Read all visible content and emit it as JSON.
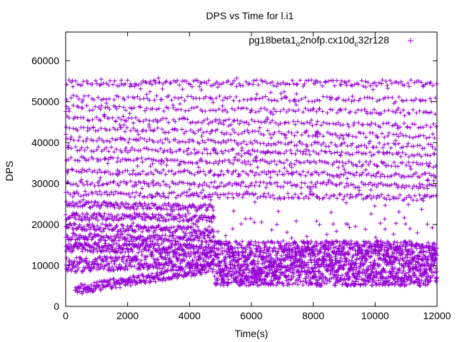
{
  "chart_data": {
    "type": "scatter",
    "title": "DPS vs Time for l.i1",
    "xlabel": "Time(s)",
    "ylabel": "DPS",
    "xlim": [
      0,
      12000
    ],
    "ylim": [
      0,
      67000
    ],
    "xticks": [
      0,
      2000,
      4000,
      6000,
      8000,
      10000,
      12000
    ],
    "yticks": [
      0,
      10000,
      20000,
      30000,
      40000,
      50000,
      60000
    ],
    "grid": false,
    "legend_position": "top-right",
    "marker": "+",
    "color": "#9400d3",
    "series": [
      {
        "name_parts": [
          "pg18beta1",
          "o",
          "2nofp.cx10d",
          "c",
          "32r128"
        ],
        "name": "pg18beta1_o2nofp.cx10d_c32r128",
        "bands": [
          {
            "x_range": [
              0,
              12000
            ],
            "y_center": 54500,
            "y_spread": 800,
            "count": 170
          },
          {
            "x_range": [
              0,
              12000
            ],
            "y_start": 51000,
            "y_end": 50500,
            "y_spread": 600,
            "count": 120
          },
          {
            "x_range": [
              0,
              12000
            ],
            "y_start": 48500,
            "y_end": 47500,
            "y_spread": 600,
            "count": 120
          },
          {
            "x_range": [
              0,
              12000
            ],
            "y_start": 46000,
            "y_end": 44000,
            "y_spread": 600,
            "count": 130
          },
          {
            "x_range": [
              0,
              12000
            ],
            "y_start": 43500,
            "y_end": 41500,
            "y_spread": 600,
            "count": 130
          },
          {
            "x_range": [
              0,
              12000
            ],
            "y_start": 41000,
            "y_end": 39000,
            "y_spread": 600,
            "count": 140
          },
          {
            "x_range": [
              0,
              12000
            ],
            "y_start": 38500,
            "y_end": 37000,
            "y_spread": 600,
            "count": 140
          },
          {
            "x_range": [
              0,
              12000
            ],
            "y_start": 36000,
            "y_end": 34500,
            "y_spread": 600,
            "count": 150
          },
          {
            "x_range": [
              0,
              12000
            ],
            "y_start": 33000,
            "y_end": 32000,
            "y_spread": 600,
            "count": 160
          },
          {
            "x_range": [
              0,
              12000
            ],
            "y_start": 30000,
            "y_end": 29500,
            "y_spread": 700,
            "count": 170
          },
          {
            "x_range": [
              0,
              12000
            ],
            "y_start": 27500,
            "y_end": 26500,
            "y_spread": 700,
            "count": 180
          },
          {
            "x_range": [
              0,
              4800
            ],
            "y_start": 25000,
            "y_end": 24000,
            "y_spread": 800,
            "count": 140
          },
          {
            "x_range": [
              0,
              4800
            ],
            "y_start": 22000,
            "y_end": 21500,
            "y_spread": 900,
            "count": 150
          },
          {
            "x_range": [
              0,
              4800
            ],
            "y_start": 19500,
            "y_end": 18500,
            "y_spread": 900,
            "count": 160
          },
          {
            "x_range": [
              0,
              4800
            ],
            "y_start": 17000,
            "y_end": 16500,
            "y_spread": 900,
            "count": 170
          },
          {
            "x_range": [
              0,
              4800
            ],
            "y_start": 14500,
            "y_end": 14000,
            "y_spread": 1200,
            "count": 260
          },
          {
            "x_range": [
              0,
              4800
            ],
            "y_start": 10000,
            "y_end": 11500,
            "y_spread": 1800,
            "count": 320
          },
          {
            "x_range": [
              300,
              4800
            ],
            "y_start": 4000,
            "y_end": 9500,
            "y_spread": 1200,
            "count": 260
          },
          {
            "x_range": [
              4800,
              12000
            ],
            "y_center": 10500,
            "y_spread": 5500,
            "count": 1800
          },
          {
            "x_range": [
              4800,
              12000
            ],
            "y_center": 19000,
            "y_spread": 2500,
            "count": 30
          }
        ],
        "sparse_ranges": [
          {
            "x_range": [
              0,
              12000
            ],
            "y_range": [
              20000,
              56000
            ],
            "count": 260
          }
        ]
      }
    ]
  }
}
